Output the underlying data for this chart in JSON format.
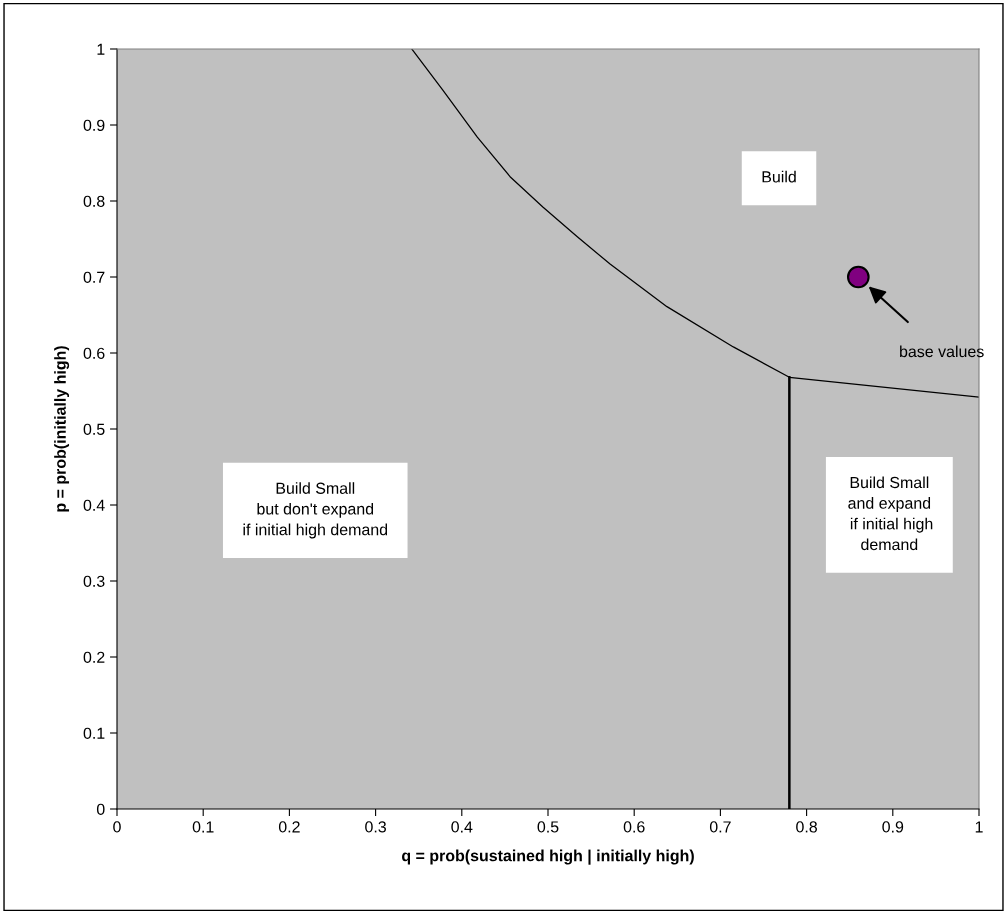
{
  "chart_data": {
    "type": "line",
    "xlabel": "q = prob(sustained high | initially high)",
    "ylabel": "p = prob(initially high)",
    "xlim": [
      0,
      1
    ],
    "ylim": [
      0,
      1
    ],
    "xticks": [
      0,
      0.1,
      0.2,
      0.3,
      0.4,
      0.5,
      0.6,
      0.7,
      0.8,
      0.9,
      1
    ],
    "yticks": [
      0,
      0.1,
      0.2,
      0.3,
      0.4,
      0.5,
      0.6,
      0.7,
      0.8,
      0.9,
      1
    ],
    "grid": false,
    "legend": false,
    "series": [
      {
        "color": "#000000",
        "x": [
          0.342,
          0.378,
          0.418,
          0.456,
          0.494,
          0.534,
          0.572,
          0.638,
          0.715,
          0.78,
          1
        ],
        "values": [
          1,
          0.946,
          0.884,
          0.832,
          0.792,
          0.753,
          0.717,
          0.661,
          0.608,
          0.568,
          0.542
        ]
      },
      {
        "color": "#000000",
        "x": [
          0.78,
          0.78
        ],
        "values": [
          0,
          0.568
        ]
      },
      {
        "type": "scatter",
        "color": "#800080",
        "x": [
          0.86
        ],
        "values": [
          0.7
        ]
      }
    ],
    "annotations": [
      "Build",
      "Build Small\nbut don't expand\nif initial high demand",
      "Build Small\nand expand\n if initial high\ndemand",
      "base values"
    ]
  }
}
